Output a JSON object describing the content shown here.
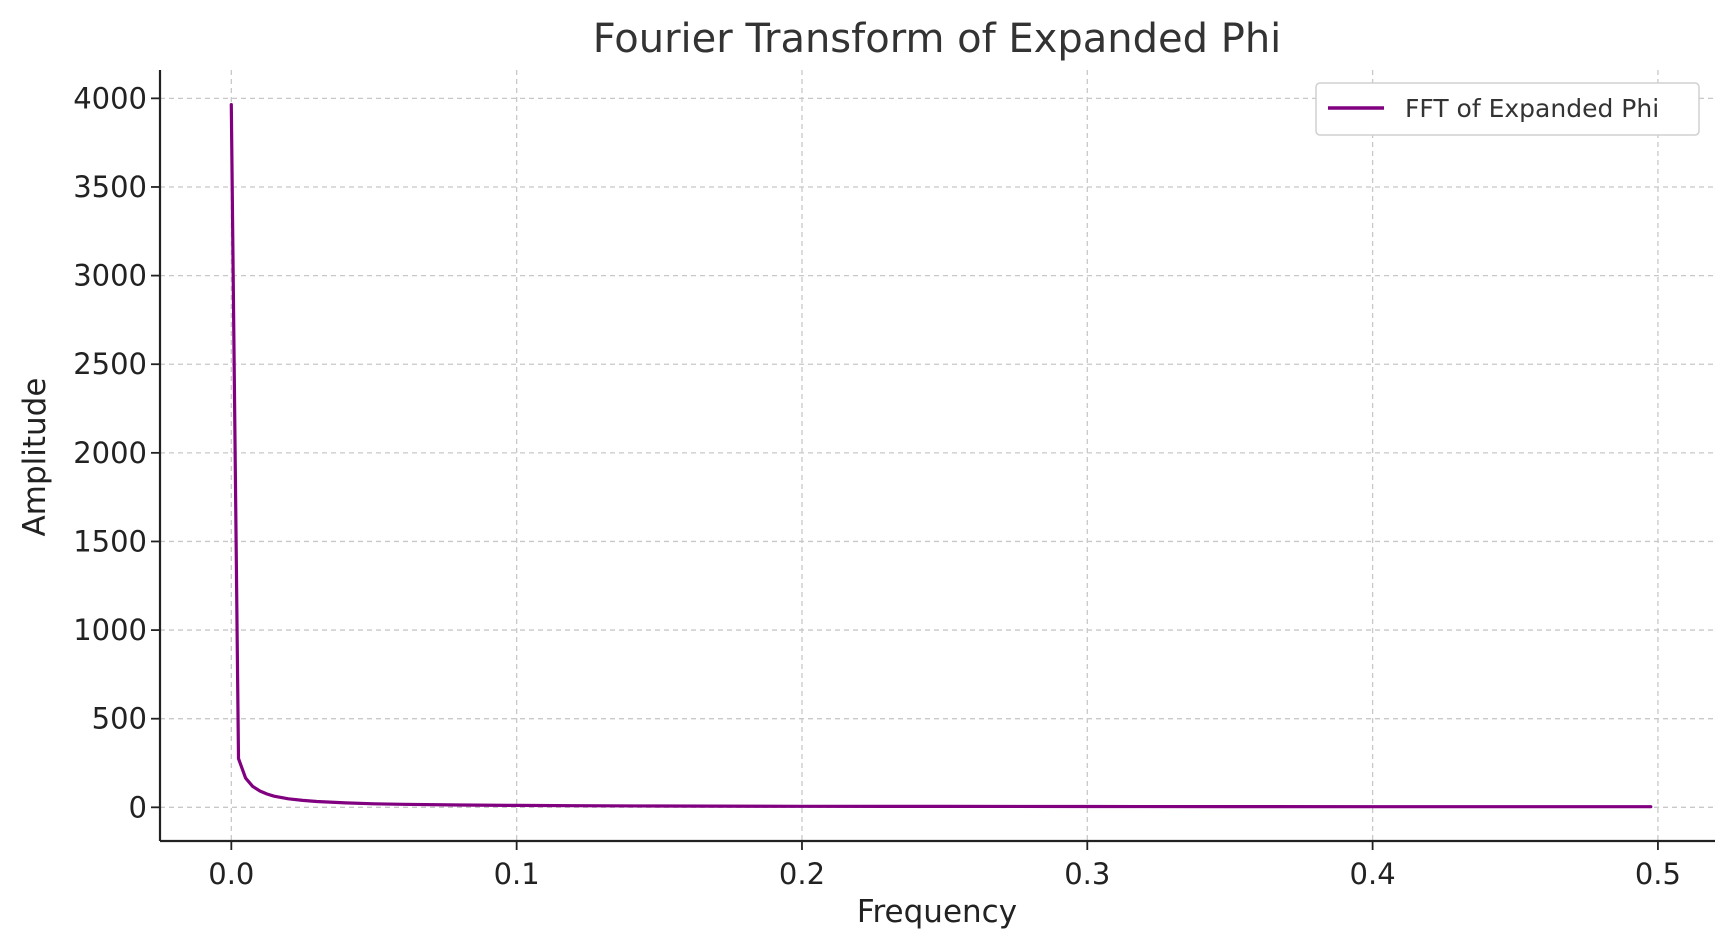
{
  "chart_data": {
    "type": "line",
    "title": "Fourier Transform of Expanded Phi",
    "xlabel": "Frequency",
    "ylabel": "Amplitude",
    "xlim": [
      -0.025,
      0.52
    ],
    "ylim": [
      -190,
      4160
    ],
    "x_ticks": [
      0.0,
      0.1,
      0.2,
      0.3,
      0.4,
      0.5
    ],
    "x_tick_labels": [
      "0.0",
      "0.1",
      "0.2",
      "0.3",
      "0.4",
      "0.5"
    ],
    "y_ticks": [
      0,
      500,
      1000,
      1500,
      2000,
      2500,
      3000,
      3500,
      4000
    ],
    "y_tick_labels": [
      "0",
      "500",
      "1000",
      "1500",
      "2000",
      "2500",
      "3000",
      "3500",
      "4000"
    ],
    "grid": true,
    "legend_position": "top-right",
    "colors": {
      "series": "#800080",
      "grid": "#c8c8c8",
      "axis": "#222222"
    },
    "series": [
      {
        "name": "FFT of Expanded Phi",
        "x": [
          0.0,
          0.0025,
          0.005,
          0.0075,
          0.01,
          0.0125,
          0.015,
          0.02,
          0.025,
          0.03,
          0.04,
          0.05,
          0.06,
          0.08,
          0.1,
          0.12,
          0.15,
          0.2,
          0.25,
          0.3,
          0.35,
          0.4,
          0.45,
          0.4975
        ],
        "values": [
          3965,
          275,
          165,
          118,
          92,
          75,
          63,
          48,
          39,
          33,
          25,
          20,
          17,
          13,
          11,
          9,
          7.5,
          6,
          5,
          4.5,
          4,
          3.8,
          3.6,
          3.5
        ]
      }
    ]
  }
}
